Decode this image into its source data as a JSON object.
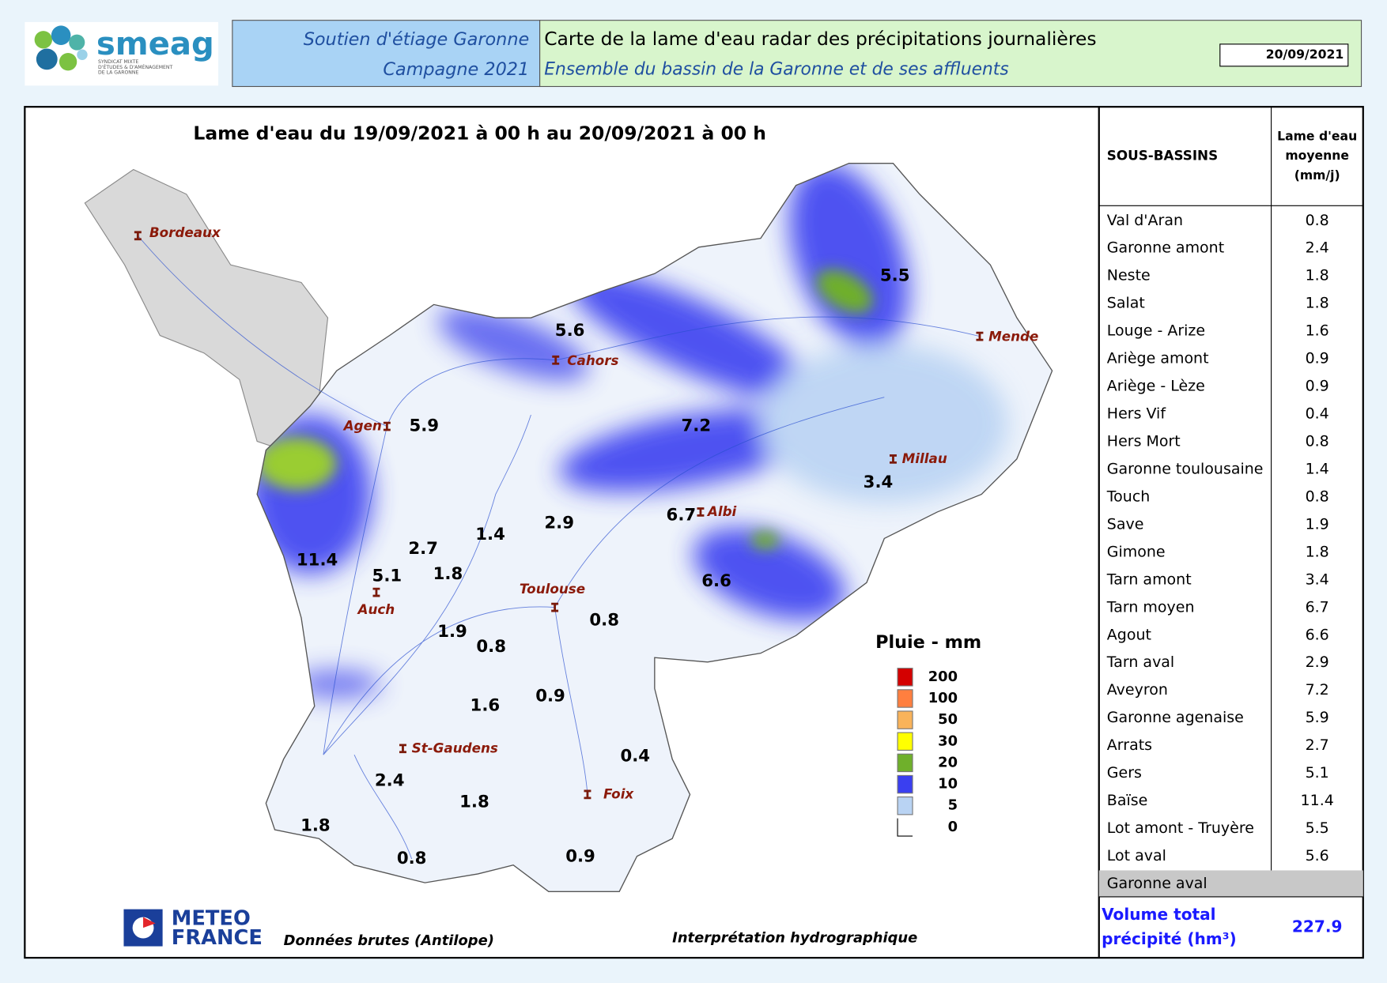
{
  "header": {
    "logo": "smeag",
    "logo_subtitle": [
      "SYNDICAT MIXTE",
      "D'ÉTUDES & D'AMÉNAGEMENT",
      "DE LA GARONNE"
    ],
    "line1": "Soutien d'étiage Garonne",
    "line2": "Campagne 2021",
    "title": "Carte de la lame d'eau radar des précipitations journalières",
    "subtitle": "Ensemble du bassin de la Garonne et de ses affluents",
    "date": "20/09/2021"
  },
  "map": {
    "title": "Lame d'eau du 19/09/2021 à 00 h au 20/09/2021 à 00 h",
    "cities": [
      "Bordeaux",
      "Cahors",
      "Mende",
      "Agen",
      "Millau",
      "Albi",
      "Toulouse",
      "Auch",
      "St-Gaudens",
      "Foix"
    ],
    "basin_values": [
      5.5,
      5.6,
      5.9,
      7.2,
      3.4,
      6.7,
      2.9,
      1.4,
      2.7,
      11.4,
      5.1,
      1.8,
      6.6,
      0.8,
      1.9,
      0.8,
      0.9,
      1.6,
      0.4,
      2.4,
      1.8,
      1.8,
      0.8,
      0.9
    ],
    "legend": {
      "title": "Pluie - mm",
      "items": [
        {
          "value": 200,
          "color": "#d40000"
        },
        {
          "value": 100,
          "color": "#ff7f3f"
        },
        {
          "value": 50,
          "color": "#f9b35a"
        },
        {
          "value": 30,
          "color": "#ffff00"
        },
        {
          "value": 20,
          "color": "#6fb02b"
        },
        {
          "value": 10,
          "color": "#3a3ff0"
        },
        {
          "value": 5,
          "color": "#b9d3f3"
        },
        {
          "value": 0,
          "color": "#ffffff"
        }
      ]
    },
    "provider": [
      "METEO",
      "FRANCE"
    ],
    "source": "Données brutes (Antilope)",
    "note": "Interprétation hydrographique"
  },
  "table": {
    "header": [
      "SOUS-BASSINS",
      [
        "Lame d'eau",
        "moyenne",
        "(mm/j)"
      ]
    ],
    "rows": [
      [
        "Val d'Aran",
        0.8
      ],
      [
        "Garonne amont",
        2.4
      ],
      [
        "Neste",
        1.8
      ],
      [
        "Salat",
        1.8
      ],
      [
        "Louge - Arize",
        1.6
      ],
      [
        "Ariège amont",
        0.9
      ],
      [
        "Ariège - Lèze",
        0.9
      ],
      [
        "Hers Vif",
        0.4
      ],
      [
        "Hers Mort",
        0.8
      ],
      [
        "Garonne toulousaine",
        1.4
      ],
      [
        "Touch",
        0.8
      ],
      [
        "Save",
        1.9
      ],
      [
        "Gimone",
        1.8
      ],
      [
        "Tarn amont",
        3.4
      ],
      [
        "Tarn moyen",
        6.7
      ],
      [
        "Agout",
        6.6
      ],
      [
        "Tarn aval",
        2.9
      ],
      [
        "Aveyron",
        7.2
      ],
      [
        "Garonne agenaise",
        5.9
      ],
      [
        "Arrats",
        2.7
      ],
      [
        "Gers",
        5.1
      ],
      [
        "Baïse",
        11.4
      ],
      [
        "Lot amont - Truyère",
        5.5
      ],
      [
        "Lot aval",
        5.6
      ],
      [
        "Garonne aval"
      ]
    ],
    "total": {
      "label": [
        "Volume total",
        "précipité (hm³)"
      ],
      "value": 227.9
    }
  }
}
